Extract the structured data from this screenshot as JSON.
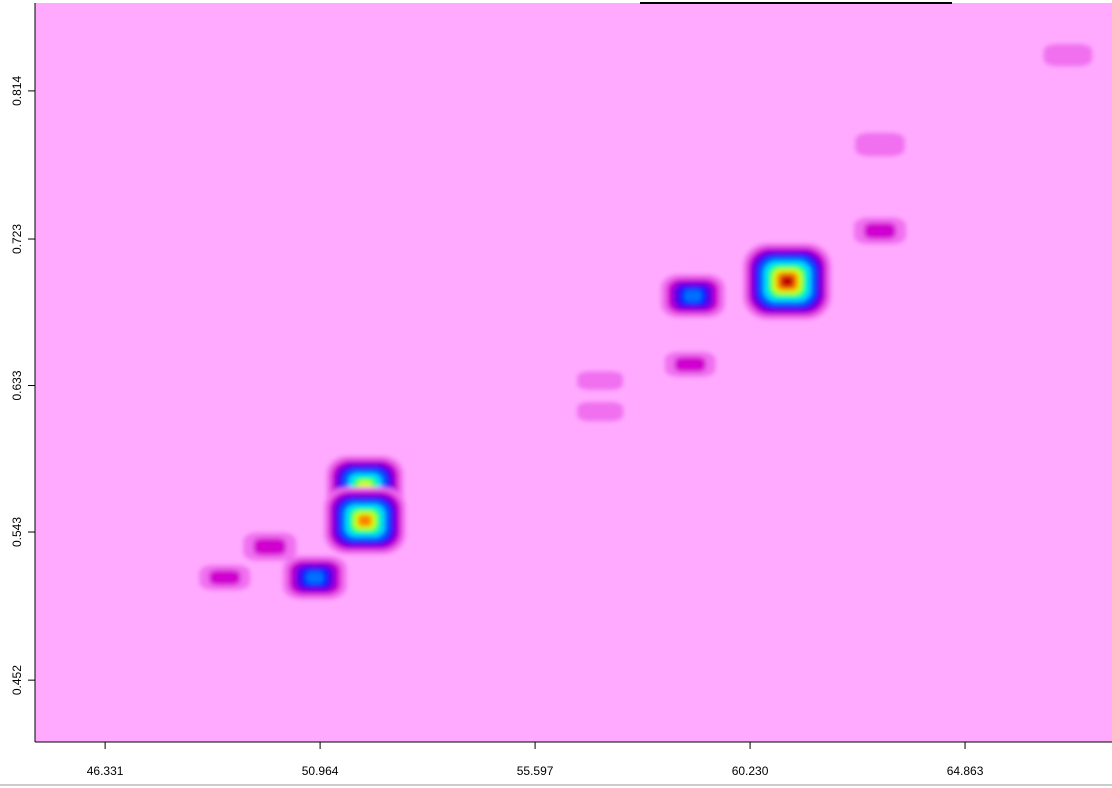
{
  "chart_data": {
    "type": "heatmap",
    "x": [
      67.08,
      63.03,
      63.03,
      61.03,
      59.0,
      58.94,
      57.0,
      57.0,
      51.93,
      51.93,
      49.88,
      50.85,
      48.91
    ],
    "y": [
      0.836,
      0.781,
      0.728,
      0.697,
      0.688,
      0.646,
      0.636,
      0.617,
      0.571,
      0.55,
      0.534,
      0.515,
      0.515
    ],
    "values": [
      10,
      12,
      18,
      100,
      45,
      15,
      4,
      5,
      75,
      85,
      20,
      45,
      15
    ],
    "colormap": [
      "#ffaaff",
      "#f070f0",
      "#d000d0",
      "#7000e0",
      "#0010ff",
      "#0070ff",
      "#00e0ff",
      "#00ff60",
      "#d0ff00",
      "#ff8000",
      "#c00000"
    ],
    "background": "#ffaaff",
    "xlim": [
      44.82,
      68.03
    ],
    "ylim": [
      0.414,
      0.868
    ],
    "xticks": [
      46.331,
      50.964,
      55.597,
      {
        "value": 60.23,
        "label": "60.230"
      },
      64.863
    ],
    "yticks": [
      0.452,
      0.543,
      0.633,
      0.723,
      0.814
    ]
  }
}
